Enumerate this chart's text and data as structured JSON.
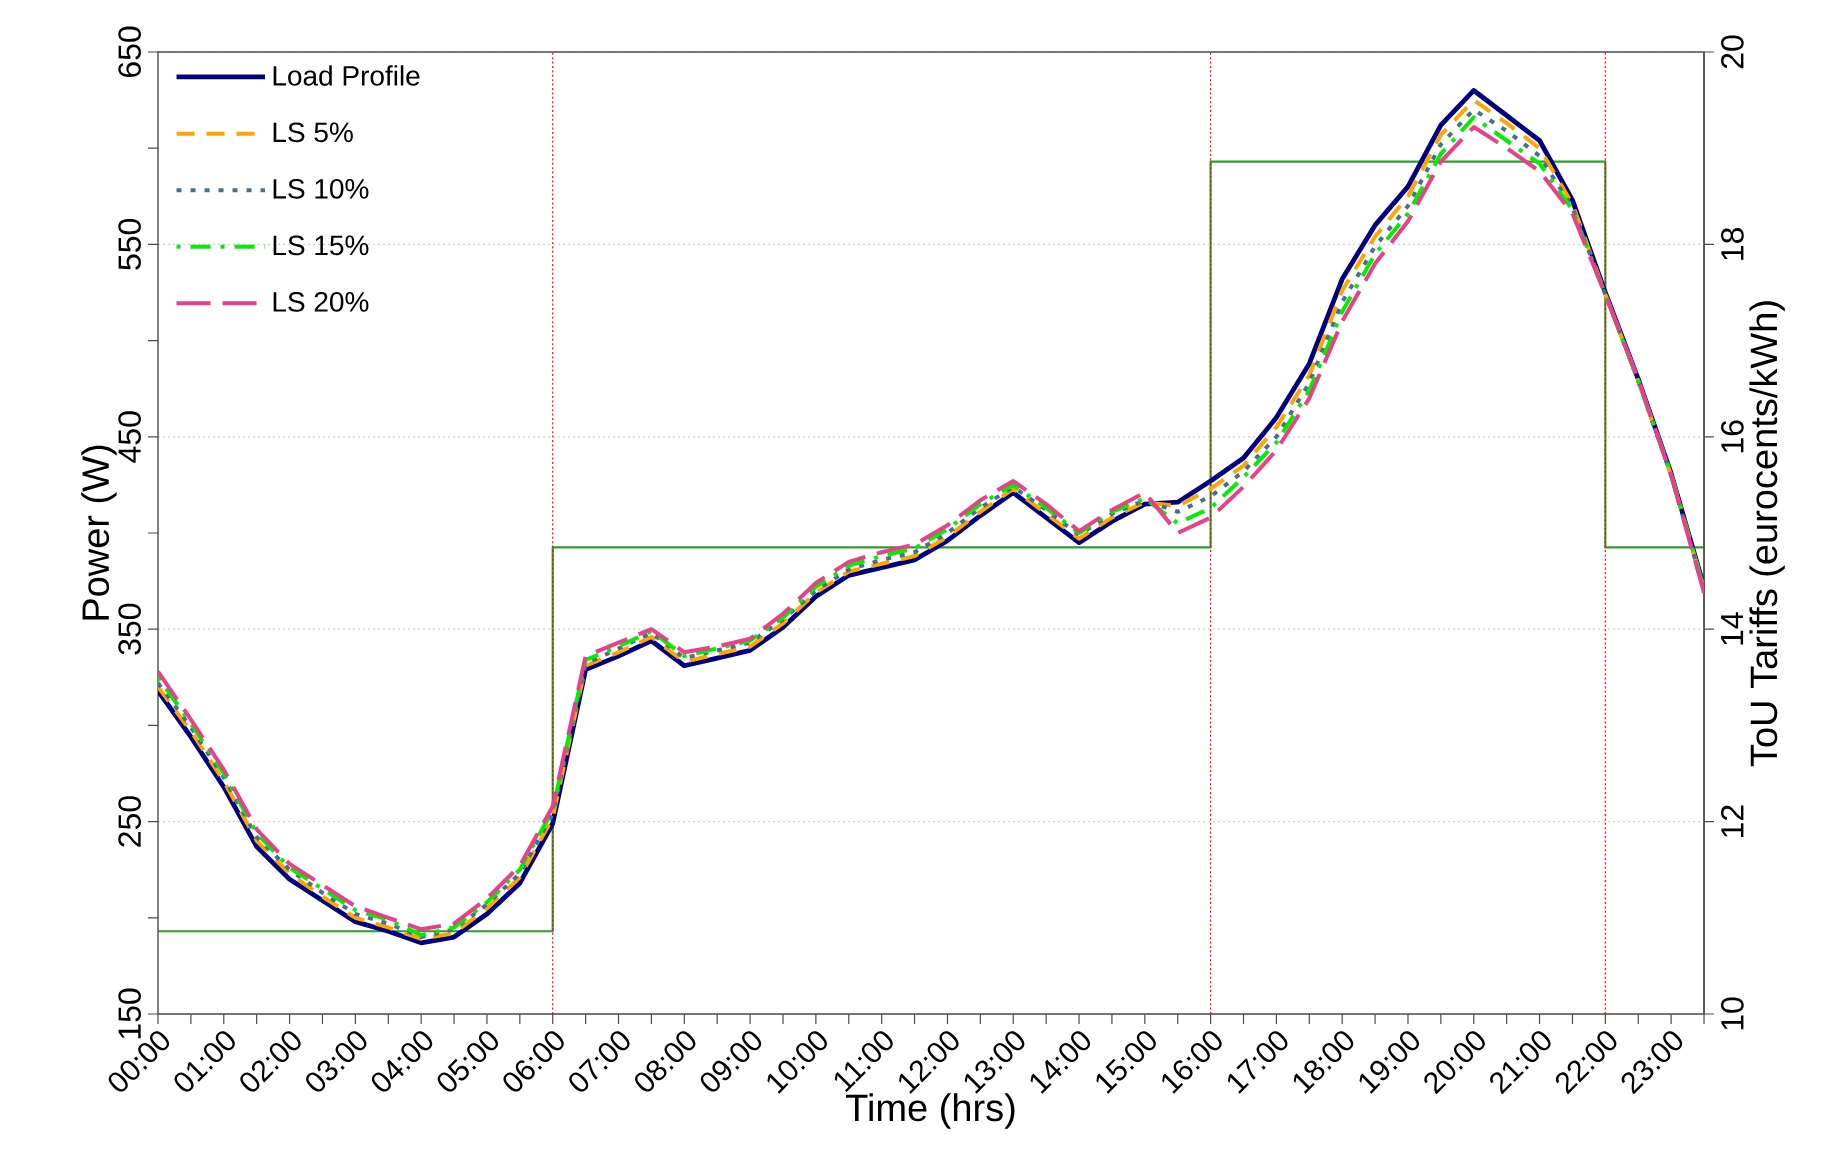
{
  "chart_data": {
    "type": "line",
    "xlabel": "Time (hrs)",
    "ylabel": "Power (W)",
    "y2label": "ToU Tariffs (eurocents/kWh)",
    "x": [
      0,
      0.5,
      1,
      1.5,
      2,
      2.5,
      3,
      3.5,
      4,
      4.5,
      5,
      5.5,
      6,
      6.5,
      7,
      7.5,
      8,
      8.5,
      9,
      9.5,
      10,
      10.5,
      11,
      11.5,
      12,
      12.5,
      13,
      13.5,
      14,
      14.5,
      15,
      15.5,
      16,
      16.5,
      17,
      17.5,
      18,
      18.5,
      19,
      19.5,
      20,
      20.5,
      21,
      21.5,
      22,
      22.5,
      23,
      23.5
    ],
    "xlim": [
      0,
      23.5
    ],
    "xticks": [
      {
        "value": 0,
        "label": "00:00"
      },
      {
        "value": 0.5,
        "label": null
      },
      {
        "value": 1,
        "label": "01:00"
      },
      {
        "value": 1.5,
        "label": null
      },
      {
        "value": 2,
        "label": "02:00"
      },
      {
        "value": 2.5,
        "label": null
      },
      {
        "value": 3,
        "label": "03:00"
      },
      {
        "value": 3.5,
        "label": null
      },
      {
        "value": 4,
        "label": "04:00"
      },
      {
        "value": 4.5,
        "label": null
      },
      {
        "value": 5,
        "label": "05:00"
      },
      {
        "value": 5.5,
        "label": null
      },
      {
        "value": 6,
        "label": "06:00"
      },
      {
        "value": 6.5,
        "label": null
      },
      {
        "value": 7,
        "label": "07:00"
      },
      {
        "value": 7.5,
        "label": null
      },
      {
        "value": 8,
        "label": "08:00"
      },
      {
        "value": 8.5,
        "label": null
      },
      {
        "value": 9,
        "label": "09:00"
      },
      {
        "value": 9.5,
        "label": null
      },
      {
        "value": 10,
        "label": "10:00"
      },
      {
        "value": 10.5,
        "label": null
      },
      {
        "value": 11,
        "label": "11:00"
      },
      {
        "value": 11.5,
        "label": null
      },
      {
        "value": 12,
        "label": "12:00"
      },
      {
        "value": 12.5,
        "label": null
      },
      {
        "value": 13,
        "label": "13:00"
      },
      {
        "value": 13.5,
        "label": null
      },
      {
        "value": 14,
        "label": "14:00"
      },
      {
        "value": 14.5,
        "label": null
      },
      {
        "value": 15,
        "label": "15:00"
      },
      {
        "value": 15.5,
        "label": null
      },
      {
        "value": 16,
        "label": "16:00"
      },
      {
        "value": 16.5,
        "label": null
      },
      {
        "value": 17,
        "label": "17:00"
      },
      {
        "value": 17.5,
        "label": null
      },
      {
        "value": 18,
        "label": "18:00"
      },
      {
        "value": 18.5,
        "label": null
      },
      {
        "value": 19,
        "label": "19:00"
      },
      {
        "value": 19.5,
        "label": null
      },
      {
        "value": 20,
        "label": "20:00"
      },
      {
        "value": 20.5,
        "label": null
      },
      {
        "value": 21,
        "label": "21:00"
      },
      {
        "value": 21.5,
        "label": null
      },
      {
        "value": 22,
        "label": "22:00"
      },
      {
        "value": 22.5,
        "label": null
      },
      {
        "value": 23,
        "label": "23:00"
      },
      {
        "value": 23.5,
        "label": null
      }
    ],
    "ylim": [
      150,
      650
    ],
    "yticks": [
      150,
      {
        "value": 200,
        "label": null
      },
      250,
      {
        "value": 300,
        "label": null
      },
      350,
      {
        "value": 400,
        "label": null
      },
      450,
      {
        "value": 500,
        "label": null
      },
      550,
      {
        "value": 600,
        "label": null
      },
      650
    ],
    "y2lim": [
      10,
      20
    ],
    "y2ticks": [
      10,
      12,
      14,
      16,
      18,
      20
    ],
    "grid": "y",
    "legend": "top left",
    "marker": "none",
    "series": [
      {
        "name": "Load Profile",
        "color": "#000080",
        "line_style": "solid",
        "values": [
          318,
          294,
          268,
          237,
          220,
          209,
          198,
          193,
          187,
          190,
          202,
          218,
          249,
          329,
          336,
          344,
          331,
          335,
          339,
          351,
          367,
          378,
          382,
          386,
          396,
          409,
          421,
          408,
          395,
          406,
          415,
          416,
          427,
          439,
          460,
          488,
          532,
          560,
          580,
          612,
          630,
          617,
          604,
          573,
          525,
          480,
          431,
          372
        ]
      },
      {
        "name": "LS 5%",
        "color": "#ffa500",
        "line_style": "dashed",
        "values": [
          320,
          297,
          271,
          240,
          223,
          211,
          200,
          195,
          189,
          192,
          205,
          221,
          252,
          331,
          338,
          346,
          333,
          337,
          341,
          353,
          369,
          380,
          384,
          388,
          398,
          411,
          423,
          410,
          397,
          408,
          416,
          414,
          423,
          435,
          455,
          482,
          526,
          554,
          575,
          607,
          625,
          613,
          600,
          571,
          524,
          479,
          430,
          371
        ]
      },
      {
        "name": "LS 10%",
        "color": "#4a6f8a",
        "line_style": "dotted",
        "values": [
          322,
          299,
          273,
          242,
          225,
          213,
          202,
          197,
          190,
          194,
          207,
          223,
          254,
          332,
          340,
          348,
          335,
          339,
          343,
          355,
          370,
          381,
          386,
          390,
          400,
          413,
          424,
          412,
          399,
          410,
          417,
          411,
          419,
          432,
          450,
          478,
          520,
          549,
          570,
          602,
          620,
          609,
          596,
          569,
          524,
          479,
          430,
          370
        ]
      },
      {
        "name": "LS 15%",
        "color": "#00ee00",
        "line_style": "dashdot",
        "values": [
          325,
          301,
          275,
          244,
          226,
          215,
          204,
          199,
          191,
          195,
          208,
          225,
          256,
          334,
          341,
          349,
          336,
          340,
          344,
          356,
          372,
          383,
          388,
          392,
          402,
          415,
          425,
          413,
          400,
          411,
          418,
          405,
          413,
          429,
          447,
          474,
          515,
          545,
          566,
          597,
          616,
          604,
          592,
          568,
          524,
          479,
          431,
          371
        ]
      },
      {
        "name": "LS 20%",
        "color": "#e8408a",
        "line_style": "longdash",
        "values": [
          328,
          303,
          277,
          246,
          228,
          217,
          206,
          200,
          194,
          197,
          210,
          227,
          258,
          336,
          343,
          350,
          338,
          341,
          345,
          358,
          374,
          385,
          390,
          394,
          404,
          417,
          427,
          415,
          401,
          412,
          421,
          400,
          408,
          424,
          443,
          470,
          510,
          540,
          562,
          593,
          611,
          600,
          588,
          566,
          524,
          480,
          430,
          369
        ]
      },
      {
        "type": "step",
        "axis": "y2",
        "color": "#339933",
        "line_style": "solid",
        "x": [
          0,
          6,
          16,
          22,
          23.5
        ],
        "values": [
          10.86,
          14.85,
          18.86,
          14.85,
          14.85
        ]
      }
    ],
    "ref_lines": [
      {
        "axis": "x",
        "value": 6,
        "color": "#ff0000",
        "line_style": "dotted"
      },
      {
        "axis": "x",
        "value": 16,
        "color": "#ff0000",
        "line_style": "dotted"
      },
      {
        "axis": "x",
        "value": 22,
        "color": "#ff0000",
        "line_style": "dotted"
      }
    ]
  }
}
